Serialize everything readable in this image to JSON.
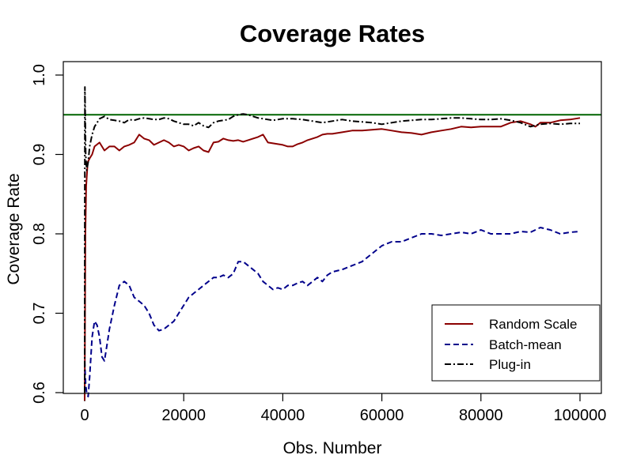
{
  "chart_data": {
    "type": "line",
    "title": "Coverage Rates",
    "xlabel": "Obs. Number",
    "ylabel": "Coverage Rate",
    "xlim": [
      0,
      100000
    ],
    "ylim": [
      0.585,
      1.0
    ],
    "x_ticks": [
      0,
      20000,
      40000,
      60000,
      80000,
      100000
    ],
    "x_tick_labels": [
      "0",
      "20000",
      "40000",
      "60000",
      "80000",
      "100000"
    ],
    "y_ticks": [
      0.6,
      0.7,
      0.8,
      0.9,
      1.0
    ],
    "y_tick_labels": [
      "0.6",
      "0.7",
      "0.8",
      "0.9",
      "1.0"
    ],
    "reference_line": {
      "y": 0.95,
      "color": "#006400"
    },
    "legend": {
      "placement": "bottom-right"
    },
    "series": [
      {
        "name": "Random Scale",
        "style": "solid",
        "color": "#8B0000",
        "x": [
          0,
          150,
          300,
          600,
          1000,
          1500,
          2000,
          3000,
          4000,
          5000,
          6000,
          7000,
          8000,
          9000,
          10000,
          11000,
          12000,
          13000,
          14000,
          15000,
          16000,
          17000,
          18000,
          19000,
          20000,
          21000,
          22000,
          23000,
          24000,
          25000,
          26000,
          27000,
          28000,
          29000,
          30000,
          31000,
          32000,
          33000,
          34000,
          35000,
          36000,
          37000,
          38000,
          39000,
          40000,
          41000,
          42000,
          43000,
          44000,
          45000,
          46000,
          47000,
          48000,
          49000,
          50000,
          52000,
          54000,
          56000,
          58000,
          60000,
          62000,
          64000,
          66000,
          68000,
          70000,
          72000,
          74000,
          76000,
          78000,
          80000,
          82000,
          84000,
          86000,
          88000,
          90000,
          91000,
          92000,
          94000,
          96000,
          98000,
          100000
        ],
        "values": [
          0.59,
          0.8,
          0.86,
          0.89,
          0.895,
          0.9,
          0.91,
          0.915,
          0.905,
          0.91,
          0.91,
          0.905,
          0.91,
          0.912,
          0.915,
          0.925,
          0.92,
          0.918,
          0.912,
          0.915,
          0.918,
          0.915,
          0.91,
          0.912,
          0.91,
          0.905,
          0.908,
          0.91,
          0.905,
          0.903,
          0.915,
          0.916,
          0.92,
          0.918,
          0.917,
          0.918,
          0.916,
          0.918,
          0.92,
          0.922,
          0.925,
          0.915,
          0.914,
          0.913,
          0.912,
          0.91,
          0.91,
          0.913,
          0.915,
          0.918,
          0.92,
          0.922,
          0.925,
          0.926,
          0.926,
          0.928,
          0.93,
          0.93,
          0.931,
          0.932,
          0.93,
          0.928,
          0.927,
          0.925,
          0.928,
          0.93,
          0.932,
          0.935,
          0.934,
          0.935,
          0.935,
          0.935,
          0.94,
          0.942,
          0.938,
          0.935,
          0.94,
          0.94,
          0.943,
          0.944,
          0.946
        ]
      },
      {
        "name": "Batch-mean",
        "style": "dashed",
        "color": "#00008B",
        "x": [
          0,
          200,
          400,
          700,
          1000,
          1500,
          2000,
          2500,
          3000,
          3500,
          4000,
          4500,
          5000,
          6000,
          7000,
          8000,
          9000,
          10000,
          11000,
          12000,
          13000,
          14000,
          15000,
          16000,
          17000,
          18000,
          19000,
          20000,
          21000,
          22000,
          23000,
          24000,
          25000,
          26000,
          27000,
          28000,
          29000,
          30000,
          31000,
          32000,
          33000,
          34000,
          35000,
          36000,
          37000,
          38000,
          39000,
          40000,
          41000,
          42000,
          43000,
          44000,
          45000,
          46000,
          47000,
          48000,
          49000,
          50000,
          52000,
          54000,
          56000,
          58000,
          60000,
          62000,
          64000,
          66000,
          68000,
          70000,
          72000,
          74000,
          76000,
          78000,
          80000,
          82000,
          84000,
          86000,
          88000,
          90000,
          92000,
          94000,
          96000,
          98000,
          100000
        ],
        "values": [
          0.64,
          0.61,
          0.6,
          0.595,
          0.62,
          0.67,
          0.69,
          0.685,
          0.67,
          0.645,
          0.64,
          0.66,
          0.68,
          0.71,
          0.735,
          0.74,
          0.735,
          0.72,
          0.715,
          0.71,
          0.7,
          0.685,
          0.678,
          0.68,
          0.685,
          0.69,
          0.7,
          0.71,
          0.72,
          0.725,
          0.73,
          0.735,
          0.74,
          0.745,
          0.745,
          0.748,
          0.745,
          0.75,
          0.765,
          0.765,
          0.76,
          0.755,
          0.75,
          0.74,
          0.735,
          0.73,
          0.732,
          0.73,
          0.735,
          0.735,
          0.738,
          0.74,
          0.735,
          0.74,
          0.745,
          0.74,
          0.748,
          0.752,
          0.755,
          0.76,
          0.765,
          0.775,
          0.785,
          0.79,
          0.79,
          0.795,
          0.8,
          0.8,
          0.798,
          0.8,
          0.802,
          0.8,
          0.805,
          0.8,
          0.8,
          0.8,
          0.803,
          0.802,
          0.808,
          0.805,
          0.8,
          0.802,
          0.803
        ]
      },
      {
        "name": "Plug-in",
        "style": "dashdot",
        "color": "#000000",
        "x": [
          0,
          50,
          100,
          200,
          400,
          700,
          1000,
          1500,
          2000,
          2500,
          3000,
          4000,
          5000,
          6000,
          7000,
          8000,
          9000,
          10000,
          11000,
          12000,
          13000,
          14000,
          15000,
          16000,
          17000,
          18000,
          19000,
          20000,
          21000,
          22000,
          23000,
          24000,
          25000,
          26000,
          27000,
          28000,
          29000,
          30000,
          31000,
          32000,
          33000,
          34000,
          35000,
          36000,
          37000,
          38000,
          39000,
          40000,
          42000,
          44000,
          46000,
          48000,
          50000,
          52000,
          54000,
          56000,
          58000,
          60000,
          62000,
          64000,
          66000,
          68000,
          70000,
          72000,
          74000,
          76000,
          78000,
          80000,
          82000,
          84000,
          86000,
          88000,
          90000,
          92000,
          94000,
          96000,
          98000,
          100000
        ],
        "values": [
          0.6,
          0.985,
          0.96,
          0.9,
          0.88,
          0.89,
          0.91,
          0.925,
          0.935,
          0.94,
          0.945,
          0.948,
          0.944,
          0.943,
          0.942,
          0.94,
          0.944,
          0.943,
          0.945,
          0.946,
          0.945,
          0.944,
          0.944,
          0.946,
          0.945,
          0.942,
          0.94,
          0.938,
          0.938,
          0.936,
          0.94,
          0.936,
          0.934,
          0.94,
          0.942,
          0.943,
          0.944,
          0.948,
          0.95,
          0.951,
          0.95,
          0.948,
          0.946,
          0.945,
          0.944,
          0.943,
          0.944,
          0.945,
          0.945,
          0.944,
          0.942,
          0.94,
          0.942,
          0.944,
          0.942,
          0.941,
          0.94,
          0.938,
          0.94,
          0.942,
          0.943,
          0.944,
          0.944,
          0.945,
          0.946,
          0.946,
          0.945,
          0.944,
          0.944,
          0.945,
          0.943,
          0.94,
          0.935,
          0.938,
          0.939,
          0.938,
          0.939,
          0.939
        ]
      }
    ]
  }
}
